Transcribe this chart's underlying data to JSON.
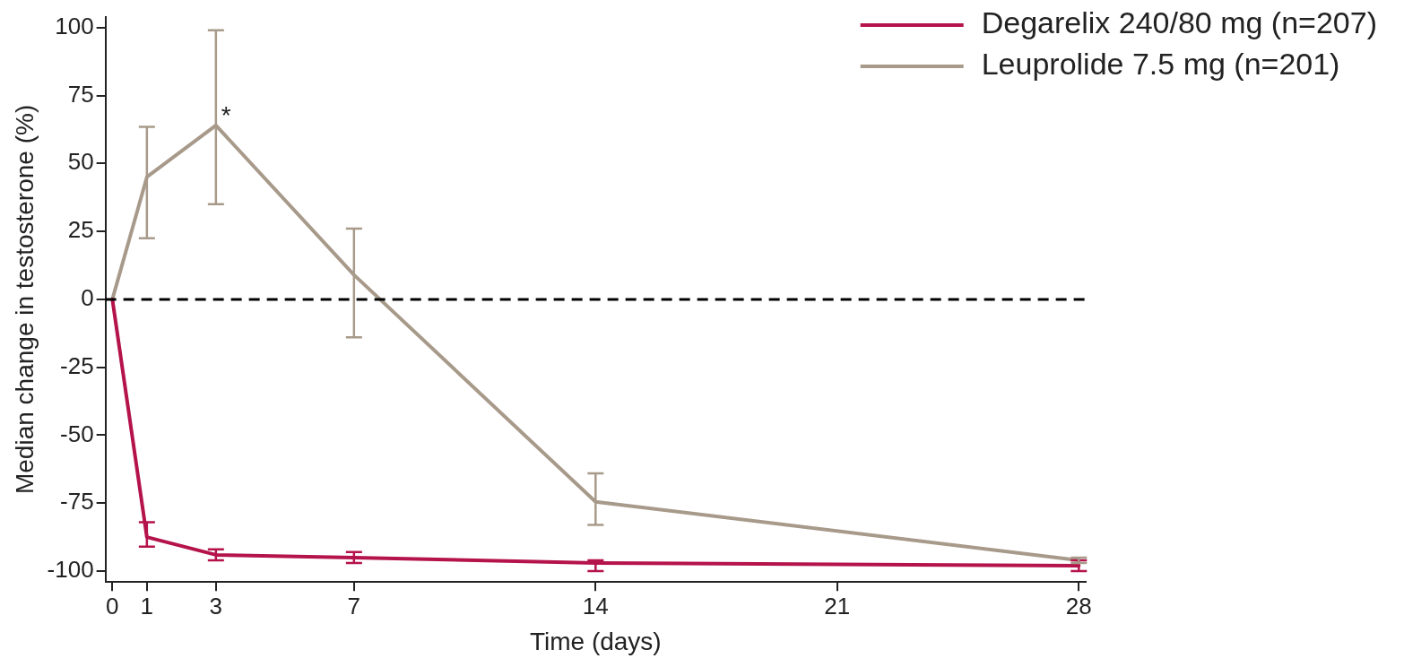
{
  "chart_data": {
    "type": "line",
    "xlabel": "Time (days)",
    "ylabel": "Median change in testosterone (%)",
    "x": [
      0,
      1,
      3,
      7,
      14,
      28
    ],
    "series": [
      {
        "name": "Degarelix 240/80 mg (n=207)",
        "color": "#b5134b",
        "values": [
          0,
          -87.5,
          -94,
          -95,
          -97,
          -98
        ],
        "errors": [
          null,
          [
            -91,
            -82
          ],
          [
            -96,
            -92
          ],
          [
            -97,
            -93
          ],
          [
            -100,
            -96
          ],
          [
            -100,
            -96
          ]
        ]
      },
      {
        "name": "Leuprolide 7.5 mg (n=201)",
        "color": "#a89a8a",
        "values": [
          0,
          45,
          64,
          9,
          -74.5,
          -96
        ],
        "errors": [
          null,
          [
            22.5,
            63.5
          ],
          [
            35,
            99
          ],
          [
            -14,
            26
          ],
          [
            -83,
            -64
          ],
          [
            -97,
            -95
          ]
        ]
      }
    ],
    "xlim": [
      -0.2,
      28.2
    ],
    "xticks": [
      0,
      1,
      3,
      7,
      14,
      21,
      28
    ],
    "ylim": [
      -104,
      104
    ],
    "yticks": [
      -100,
      -75,
      -50,
      -25,
      0,
      25,
      50,
      75,
      100
    ],
    "ref_lines": [
      {
        "axis": "y",
        "value": 0,
        "color": "#000000",
        "line_style": "dashed"
      }
    ],
    "annotations": [
      {
        "text": "*",
        "x": 3,
        "y": 64
      }
    ],
    "grid": false,
    "legend": "top right",
    "line_style": "solid"
  }
}
